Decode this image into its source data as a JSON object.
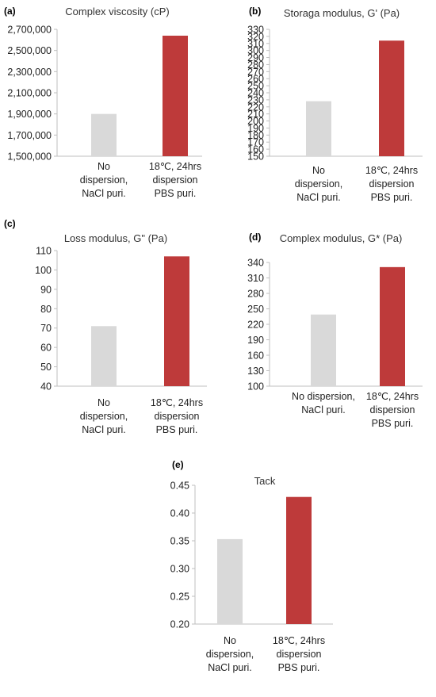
{
  "charts": [
    {
      "panel": "(a)",
      "chart_data": {
        "type": "bar",
        "title": "Complex viscosity (cP)",
        "categories": [
          [
            "No",
            "dispersion,",
            "NaCl puri."
          ],
          [
            "18℃, 24hrs",
            "dispersion",
            "PBS puri."
          ]
        ],
        "values": [
          1900000,
          2640000
        ],
        "colors": [
          "#d9d9d9",
          "#be3a3a"
        ],
        "ylim": [
          1500000,
          2700000
        ],
        "yticks": [
          1500000,
          1700000,
          1900000,
          2100000,
          2300000,
          2500000,
          2700000
        ],
        "ytick_labels": [
          "1,500,000",
          "1,700,000",
          "1,900,000",
          "2,100,000",
          "2,300,000",
          "2,500,000",
          "2,700,000"
        ],
        "grid": false,
        "xlabel": "",
        "ylabel": ""
      }
    },
    {
      "panel": "(b)",
      "chart_data": {
        "type": "bar",
        "title": "Storaga modulus, G' (Pa)",
        "categories": [
          [
            "No",
            "dispersion,",
            "NaCl puri."
          ],
          [
            "18℃, 24hrs",
            "dispersion",
            "PBS puri."
          ]
        ],
        "values": [
          228,
          314
        ],
        "colors": [
          "#d9d9d9",
          "#be3a3a"
        ],
        "ylim": [
          150,
          330
        ],
        "yticks": [
          150,
          160,
          170,
          180,
          190,
          200,
          210,
          220,
          230,
          240,
          250,
          260,
          270,
          280,
          290,
          300,
          310,
          320,
          330
        ],
        "ytick_labels": [
          "150",
          "160",
          "170",
          "180",
          "190",
          "200",
          "210",
          "220",
          "230",
          "240",
          "250",
          "260",
          "270",
          "280",
          "290",
          "300",
          "310",
          "320",
          "330"
        ],
        "grid": false,
        "xlabel": "",
        "ylabel": ""
      }
    },
    {
      "panel": "(c)",
      "chart_data": {
        "type": "bar",
        "title": "Loss modulus, G\" (Pa)",
        "categories": [
          [
            "No",
            "dispersion,",
            "NaCl puri."
          ],
          [
            "18℃, 24hrs",
            "dispersion",
            "PBS puri."
          ]
        ],
        "values": [
          71,
          107
        ],
        "colors": [
          "#d9d9d9",
          "#be3a3a"
        ],
        "ylim": [
          40,
          110
        ],
        "yticks": [
          40,
          50,
          60,
          70,
          80,
          90,
          100,
          110
        ],
        "ytick_labels": [
          "40",
          "50",
          "60",
          "70",
          "80",
          "90",
          "100",
          "110"
        ],
        "grid": false,
        "xlabel": "",
        "ylabel": ""
      }
    },
    {
      "panel": "(d)",
      "chart_data": {
        "type": "bar",
        "title": "Complex modulus, G* (Pa)",
        "categories": [
          [
            "No dispersion,",
            "NaCl puri."
          ],
          [
            "18℃, 24hrs",
            "dispersion",
            "PBS puri."
          ]
        ],
        "values": [
          239,
          331
        ],
        "colors": [
          "#d9d9d9",
          "#be3a3a"
        ],
        "ylim": [
          100,
          340
        ],
        "yticks": [
          100,
          130,
          160,
          190,
          220,
          250,
          280,
          310,
          340
        ],
        "ytick_labels": [
          "100",
          "130",
          "160",
          "190",
          "220",
          "250",
          "280",
          "310",
          "340"
        ],
        "grid": false,
        "xlabel": "",
        "ylabel": ""
      }
    },
    {
      "panel": "(e)",
      "chart_data": {
        "type": "bar",
        "title": "Tack",
        "categories": [
          [
            "No",
            "dispersion,",
            "NaCl puri."
          ],
          [
            "18℃, 24hrs",
            "dispersion",
            "PBS puri."
          ]
        ],
        "values": [
          0.353,
          0.429
        ],
        "colors": [
          "#d9d9d9",
          "#be3a3a"
        ],
        "ylim": [
          0.2,
          0.45
        ],
        "yticks": [
          0.2,
          0.25,
          0.3,
          0.35,
          0.4,
          0.45
        ],
        "ytick_labels": [
          "0.20",
          "0.25",
          "0.30",
          "0.35",
          "0.40",
          "0.45"
        ],
        "grid": false,
        "xlabel": "",
        "ylabel": ""
      }
    }
  ]
}
